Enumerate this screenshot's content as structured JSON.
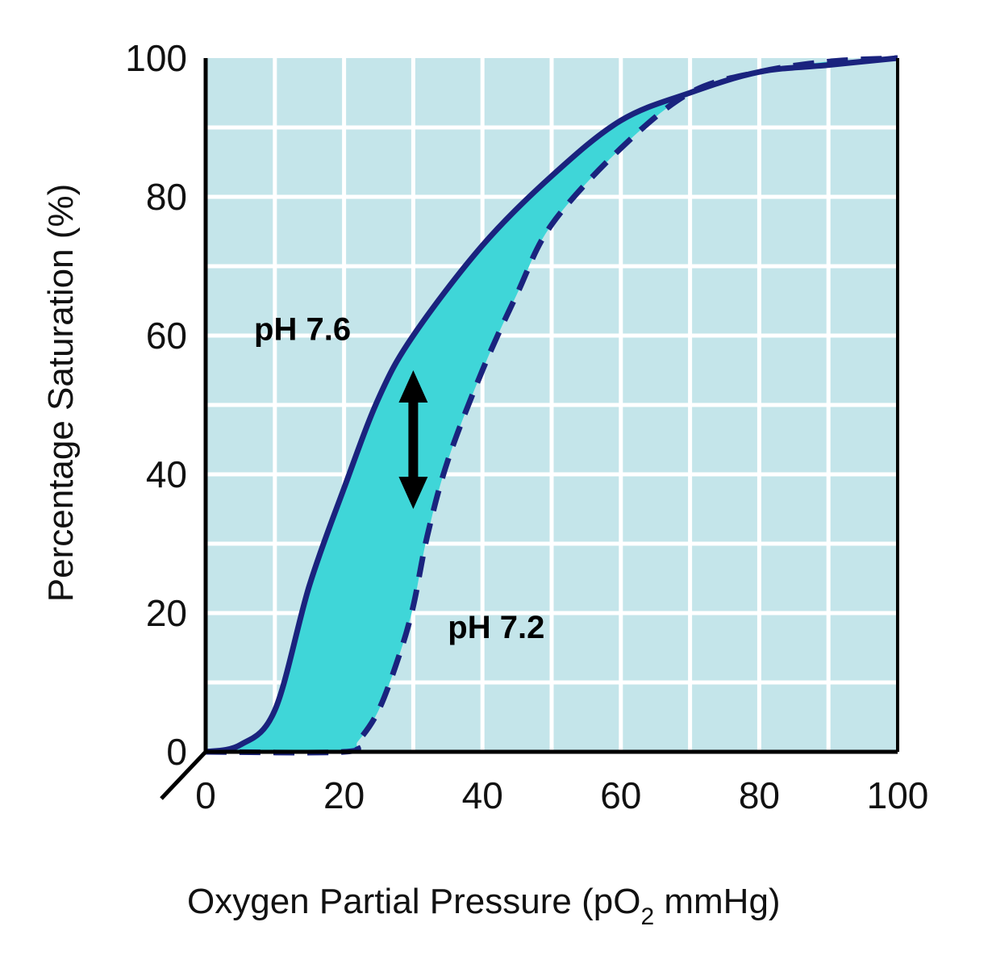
{
  "chart_data": {
    "type": "line",
    "title": "",
    "xlabel": "Oxygen Partial Pressure (pO",
    "xlabel_sub": "2",
    "xlabel_tail": " mmHg)",
    "ylabel": "Percentage Saturation (%)",
    "xlim": [
      0,
      100
    ],
    "ylim": [
      0,
      100
    ],
    "xticks": [
      "0",
      "20",
      "40",
      "60",
      "80",
      "100"
    ],
    "yticks": [
      "0",
      "20",
      "40",
      "60",
      "80",
      "100"
    ],
    "grid": true,
    "grid_step": 10,
    "series": [
      {
        "name": "pH 7.6",
        "style": "solid",
        "x": [
          0,
          5,
          10,
          15,
          20,
          25,
          30,
          40,
          50,
          60,
          70,
          80,
          90,
          100
        ],
        "y": [
          0,
          1,
          6,
          24,
          38,
          51,
          60,
          73,
          83,
          91,
          95,
          98,
          99,
          100
        ]
      },
      {
        "name": "pH 7.2",
        "style": "dashed",
        "x": [
          0,
          20,
          22,
          25,
          28,
          30,
          32,
          35,
          40,
          45,
          50,
          60,
          70,
          80,
          90,
          100
        ],
        "y": [
          0,
          0,
          1.5,
          6,
          14,
          21,
          31,
          42,
          55,
          66,
          76,
          87,
          95,
          98,
          99.5,
          100
        ]
      }
    ],
    "annotations": [
      {
        "text": "pH 7.6",
        "x": 7,
        "y": 61
      },
      {
        "text": "pH 7.2",
        "x": 35,
        "y": 18
      }
    ],
    "arrow": {
      "x": 30,
      "y_from": 35,
      "y_to": 55,
      "direction": "double"
    },
    "colors": {
      "plot_background": "#c4e5ea",
      "grid": "#ffffff",
      "fill_between": "#3fd6d8",
      "curve": "#1a237e",
      "axis": "#000000"
    }
  }
}
